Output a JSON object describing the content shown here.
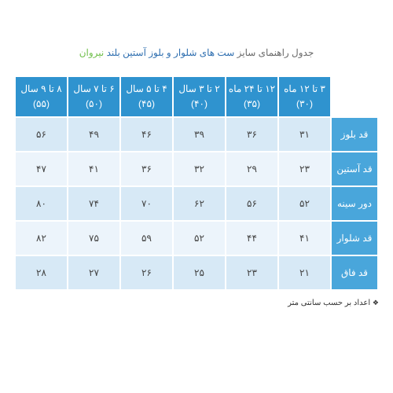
{
  "title": {
    "part1": "جدول راهنمای سایز",
    "part2": "ست های شلوار و بلوز آستین بلند",
    "part3": " نیروان"
  },
  "table": {
    "col_headers": [
      {
        "line1": "۳ تا ۱۲ ماه",
        "line2": "(۳۰)"
      },
      {
        "line1": "۱۲ تا ۲۴ ماه",
        "line2": "(۳۵)"
      },
      {
        "line1": "۲ تا ۳ سال",
        "line2": "(۴۰)"
      },
      {
        "line1": "۴ تا ۵ سال",
        "line2": "(۴۵)"
      },
      {
        "line1": "۶ تا ۷ سال",
        "line2": "(۵۰)"
      },
      {
        "line1": "۸ تا ۹ سال",
        "line2": "(۵۵)"
      }
    ],
    "row_headers": [
      "قد بلوز",
      "قد آستین",
      "دور سینه",
      "قد شلوار",
      "قد فاق"
    ],
    "rows": [
      [
        "۳۱",
        "۳۶",
        "۳۹",
        "۴۶",
        "۴۹",
        "۵۶"
      ],
      [
        "۲۳",
        "۲۹",
        "۳۲",
        "۳۶",
        "۴۱",
        "۴۷"
      ],
      [
        "۵۲",
        "۵۶",
        "۶۲",
        "۷۰",
        "۷۴",
        "۸۰"
      ],
      [
        "۴۱",
        "۴۴",
        "۵۲",
        "۵۹",
        "۷۵",
        "۸۲"
      ],
      [
        "۲۱",
        "۲۳",
        "۲۵",
        "۲۶",
        "۲۷",
        "۲۸"
      ]
    ]
  },
  "footnote": {
    "bullet": "❖",
    "text": " اعداد بر حسب سانتی متر"
  },
  "colors": {
    "header_bg": "#2f93cf",
    "rowheader_bg": "#49a6db",
    "odd_row_bg": "#d7e9f6",
    "even_row_bg": "#ecf4fb",
    "border": "#ffffff",
    "title_gray": "#6a6a6a",
    "title_blue": "#2f6fb0",
    "title_green": "#6fbf4a"
  }
}
